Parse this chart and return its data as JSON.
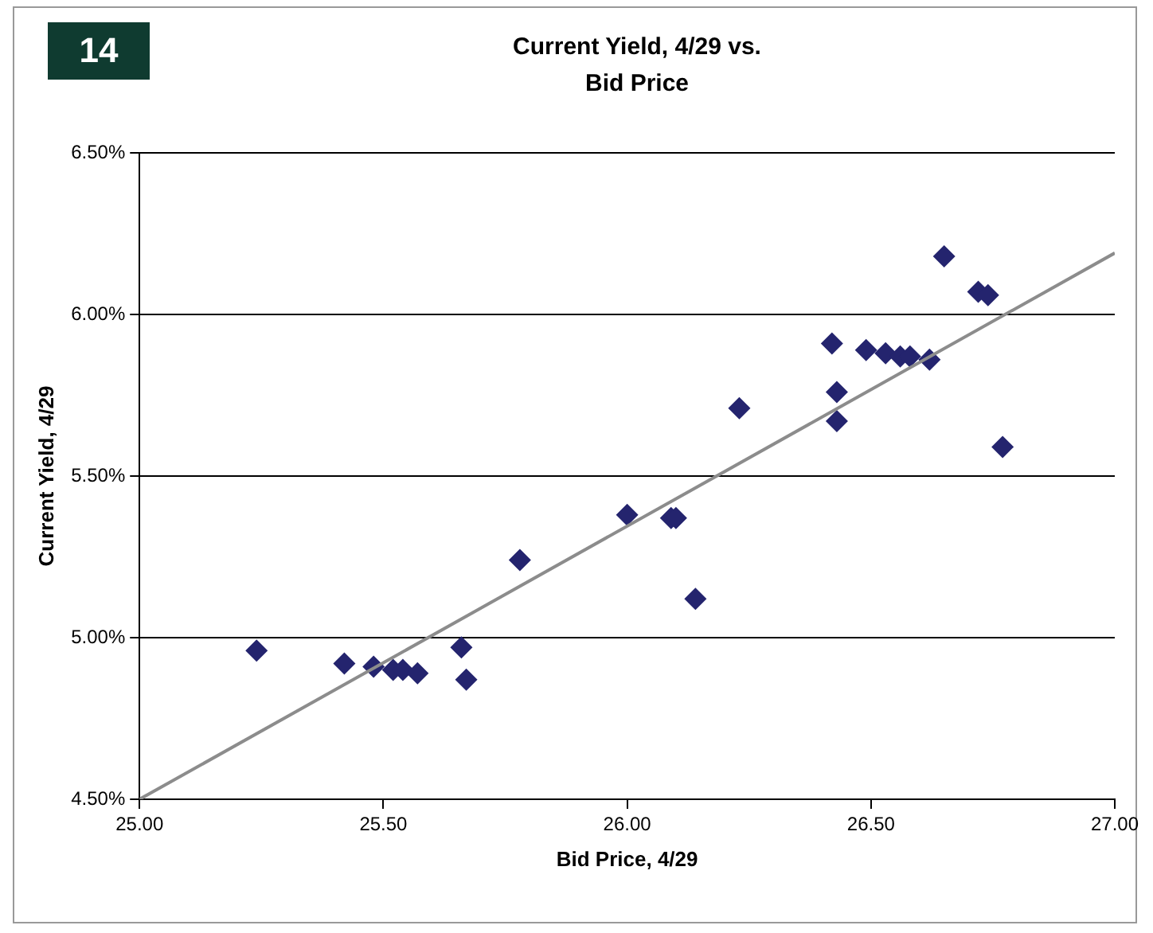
{
  "chart_data": {
    "type": "scatter",
    "title": "Current Yield, 4/29 vs. Bid Price",
    "xlabel": "Bid Price, 4/29",
    "ylabel": "Current Yield, 4/29",
    "annotations": [
      "14"
    ],
    "xlim": [
      25,
      27
    ],
    "xticks": [
      {
        "value": 25,
        "label": "25.00"
      },
      {
        "value": 25.5,
        "label": "25.50"
      },
      {
        "value": 26,
        "label": "26.00"
      },
      {
        "value": 26.5,
        "label": "26.50"
      },
      {
        "value": 27,
        "label": "27.00"
      }
    ],
    "ylim": [
      4.5,
      6.5
    ],
    "yticks": [
      {
        "value": 4.5,
        "label": "4.50%"
      },
      {
        "value": 5,
        "label": "5.00%"
      },
      {
        "value": 5.5,
        "label": "5.50%"
      },
      {
        "value": 6,
        "label": "6.00%"
      },
      {
        "value": 6.5,
        "label": "6.50%"
      }
    ],
    "grid": "y",
    "legend": false,
    "marker": "diamond",
    "series": [
      {
        "type": "scatter",
        "color": "#24246e",
        "x": [
          25.24,
          25.42,
          25.48,
          25.52,
          25.54,
          25.57,
          25.66,
          25.67,
          25.78,
          26.0,
          26.09,
          26.1,
          26.14,
          26.23,
          26.42,
          26.43,
          26.43,
          26.49,
          26.53,
          26.56,
          26.58,
          26.62,
          26.65,
          26.72,
          26.74,
          26.77
        ],
        "values": [
          4.96,
          4.92,
          4.91,
          4.9,
          4.9,
          4.89,
          4.97,
          4.87,
          5.24,
          5.38,
          5.37,
          5.37,
          5.12,
          5.71,
          5.91,
          5.76,
          5.67,
          5.89,
          5.88,
          5.87,
          5.87,
          5.86,
          6.18,
          6.07,
          6.06,
          5.59
        ]
      },
      {
        "type": "line",
        "color": "#8c8c8c",
        "marker": "none",
        "x": [
          25,
          27
        ],
        "values": [
          4.5,
          6.19
        ]
      }
    ]
  }
}
